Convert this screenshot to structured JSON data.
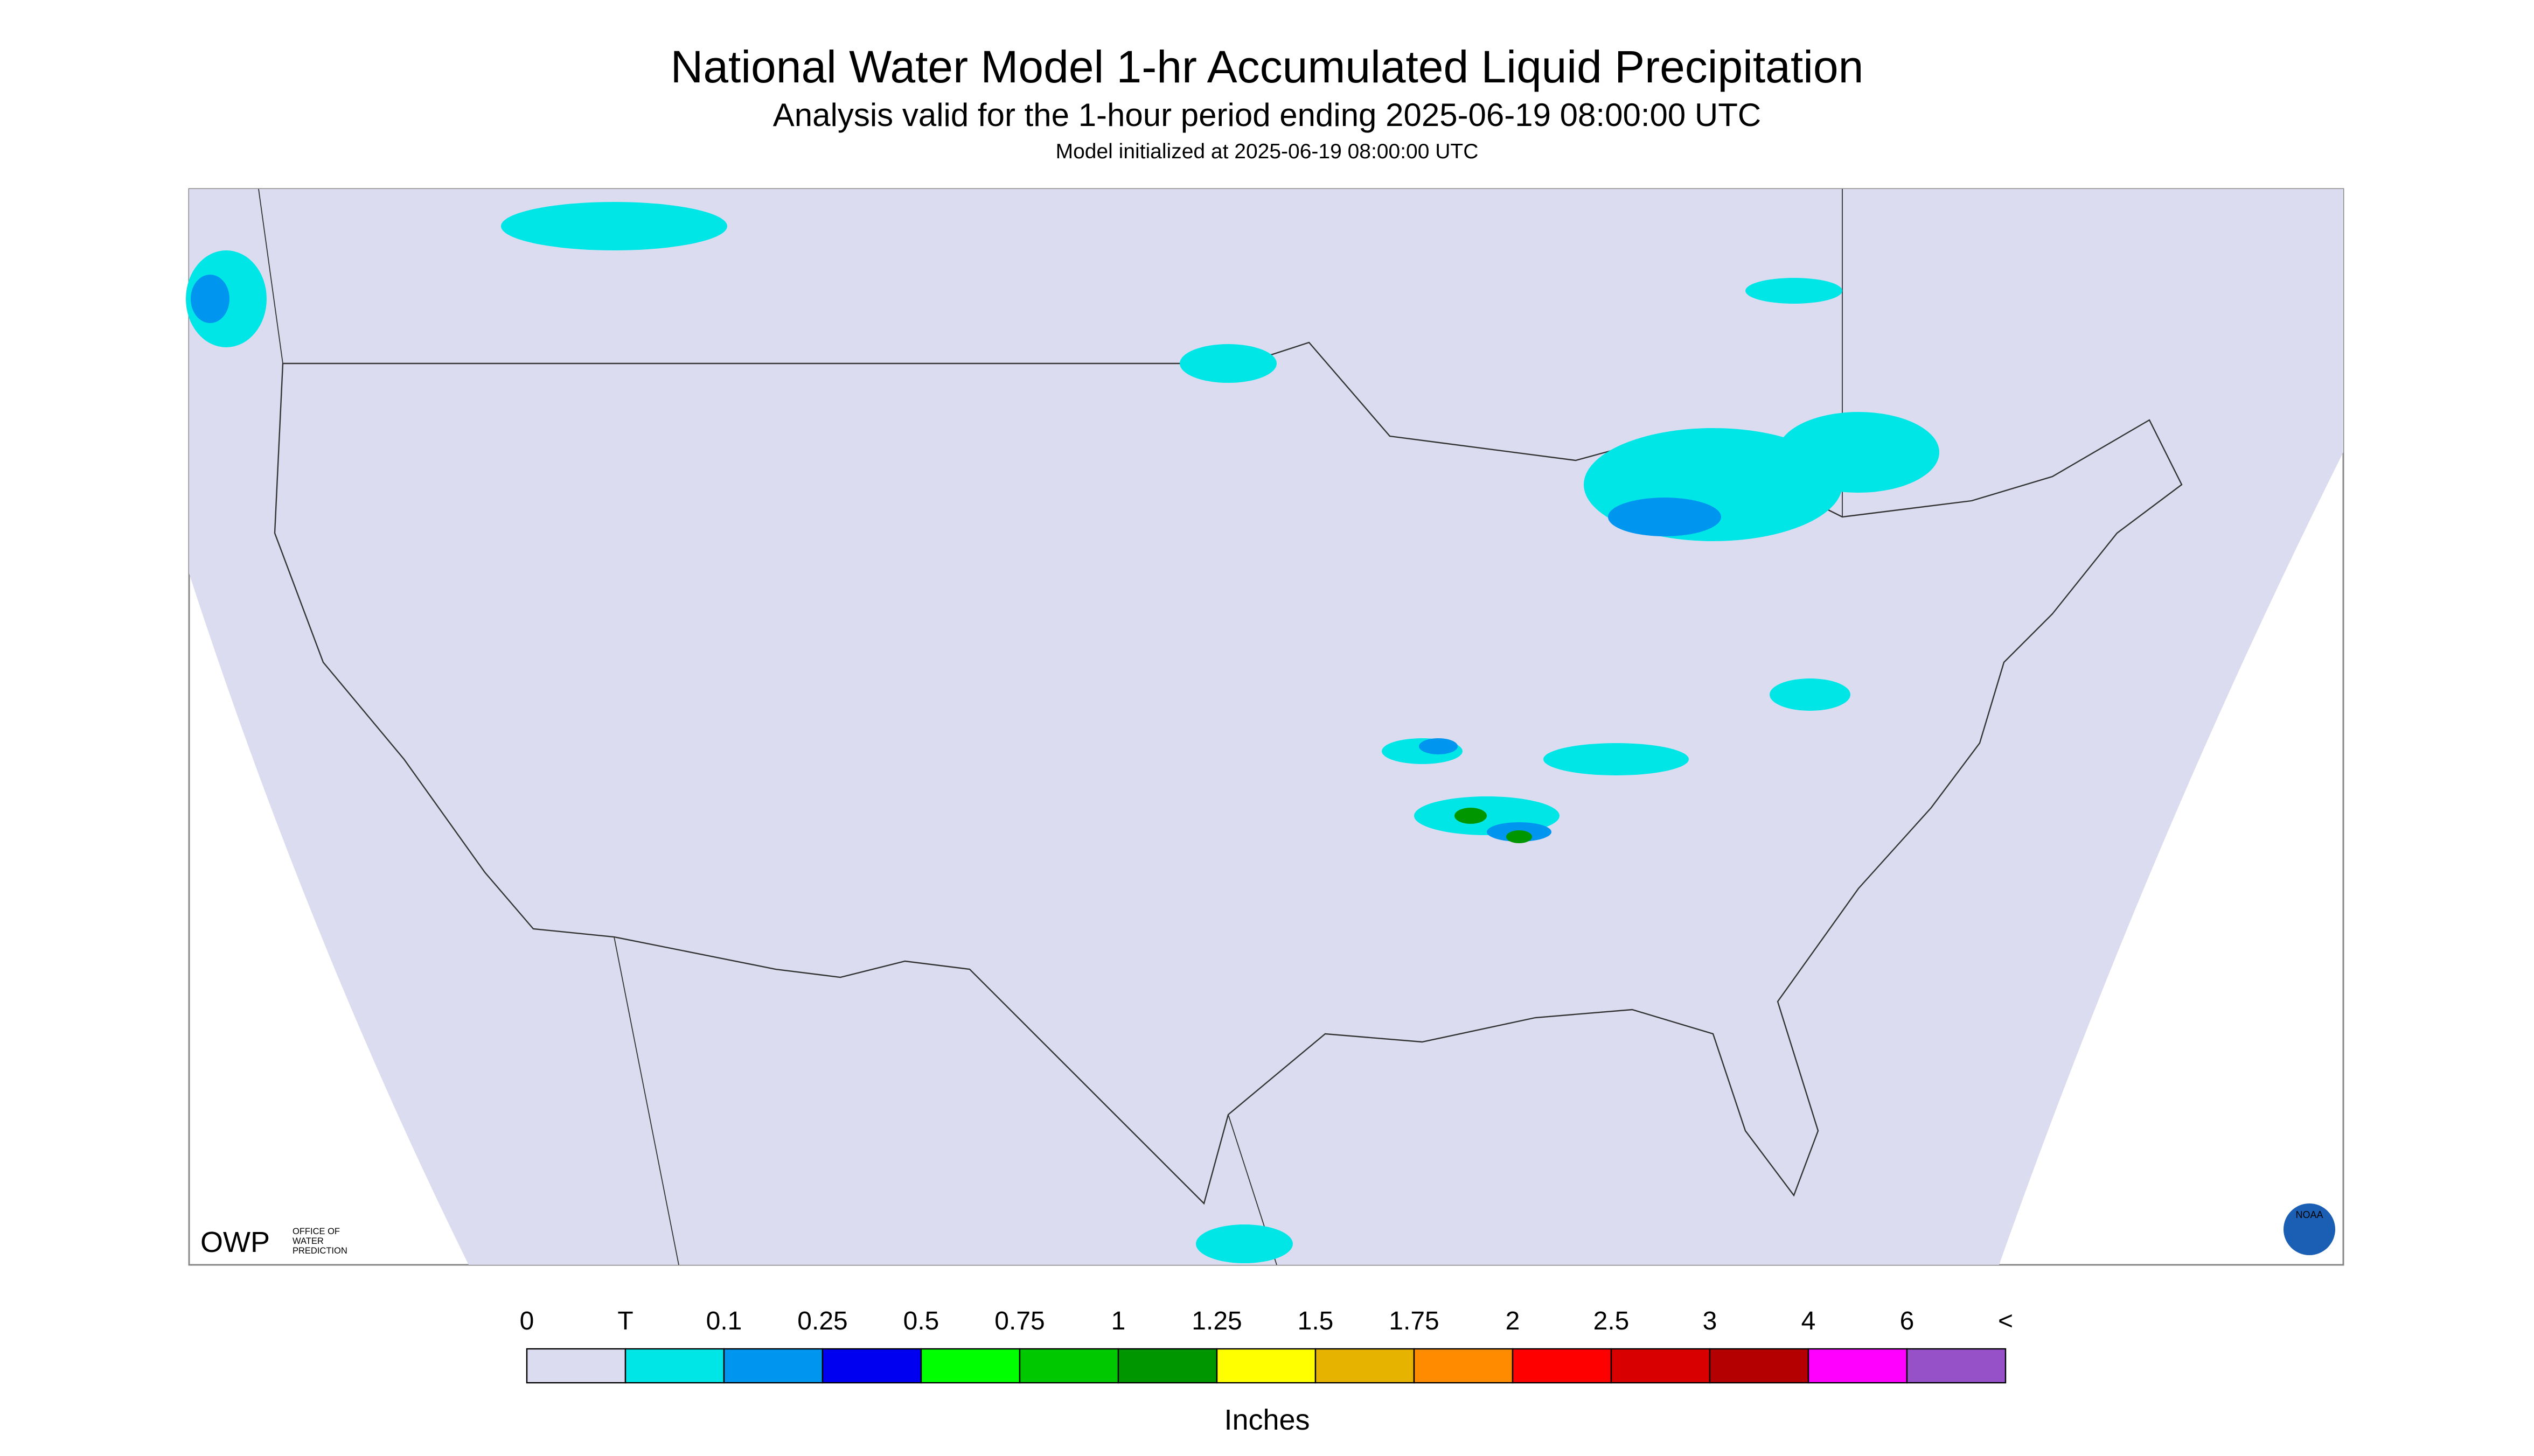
{
  "header": {
    "title": "National Water Model 1-hr Accumulated Liquid Precipitation",
    "subtitle": "Analysis valid for the 1-hour period ending 2025-06-19 08:00:00 UTC",
    "note": "Model initialized at 2025-06-19 08:00:00 UTC"
  },
  "logos": {
    "owp": "OWP",
    "owp_name": [
      "OFFICE OF",
      "WATER",
      "PREDICTION"
    ],
    "noaa": "NOAA"
  },
  "legend": {
    "labels": [
      "0",
      "T",
      "0.1",
      "0.25",
      "0.5",
      "0.75",
      "1",
      "1.25",
      "1.5",
      "1.75",
      "2",
      "2.5",
      "3",
      "4",
      "6",
      "<"
    ],
    "colors": [
      "#dcdcf0",
      "#00e6e6",
      "#0096f0",
      "#0000f0",
      "#00ff00",
      "#00c800",
      "#009600",
      "#ffff00",
      "#e6b400",
      "#ff8c00",
      "#ff0000",
      "#d80000",
      "#b40000",
      "#ff00ff",
      "#9650c8"
    ],
    "unit": "Inches"
  }
}
